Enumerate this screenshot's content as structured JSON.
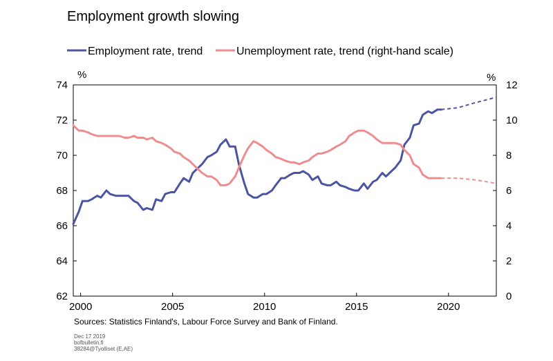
{
  "chart_data": {
    "type": "line",
    "title": "Employment growth slowing",
    "legend": {
      "placement": "top",
      "entries": [
        "Employment rate, trend",
        "Unemployment rate, trend (right-hand scale)"
      ]
    },
    "y_left": {
      "unit": "%",
      "range": [
        62,
        74
      ],
      "ticks": [
        "62",
        "64",
        "66",
        "68",
        "70",
        "72",
        "74"
      ]
    },
    "y_right": {
      "unit": "%",
      "range": [
        0,
        12
      ],
      "ticks": [
        "0",
        "2",
        "4",
        "6",
        "8",
        "10",
        "12"
      ]
    },
    "x_axis": {
      "range": [
        1999.6,
        2022.6
      ],
      "ticks": [
        "2000",
        "2005",
        "2010",
        "2015",
        "2020"
      ],
      "tick_values": [
        2000,
        2005,
        2010,
        2015,
        2020
      ]
    },
    "grid": false,
    "series": [
      {
        "name": "Employment rate, trend",
        "color": "#4a54a0",
        "axis": "left",
        "points": [
          [
            1999.6,
            66.1
          ],
          [
            1999.9,
            66.8
          ],
          [
            2000.1,
            67.4
          ],
          [
            2000.4,
            67.4
          ],
          [
            2000.6,
            67.5
          ],
          [
            2000.9,
            67.7
          ],
          [
            2001.1,
            67.6
          ],
          [
            2001.4,
            68.0
          ],
          [
            2001.6,
            67.8
          ],
          [
            2001.9,
            67.7
          ],
          [
            2002.1,
            67.7
          ],
          [
            2002.4,
            67.7
          ],
          [
            2002.6,
            67.7
          ],
          [
            2002.9,
            67.4
          ],
          [
            2003.1,
            67.3
          ],
          [
            2003.4,
            66.9
          ],
          [
            2003.6,
            67.0
          ],
          [
            2003.9,
            66.9
          ],
          [
            2004.1,
            67.5
          ],
          [
            2004.4,
            67.4
          ],
          [
            2004.6,
            67.8
          ],
          [
            2004.9,
            67.9
          ],
          [
            2005.1,
            67.9
          ],
          [
            2005.4,
            68.4
          ],
          [
            2005.6,
            68.7
          ],
          [
            2005.9,
            68.5
          ],
          [
            2006.1,
            69.0
          ],
          [
            2006.4,
            69.3
          ],
          [
            2006.6,
            69.5
          ],
          [
            2006.9,
            69.9
          ],
          [
            2007.1,
            70.0
          ],
          [
            2007.4,
            70.2
          ],
          [
            2007.6,
            70.6
          ],
          [
            2007.9,
            70.9
          ],
          [
            2008.1,
            70.5
          ],
          [
            2008.4,
            70.5
          ],
          [
            2008.6,
            69.5
          ],
          [
            2008.9,
            68.4
          ],
          [
            2009.1,
            67.8
          ],
          [
            2009.4,
            67.6
          ],
          [
            2009.6,
            67.6
          ],
          [
            2009.9,
            67.8
          ],
          [
            2010.1,
            67.8
          ],
          [
            2010.4,
            68.0
          ],
          [
            2010.6,
            68.3
          ],
          [
            2010.9,
            68.7
          ],
          [
            2011.1,
            68.7
          ],
          [
            2011.4,
            68.9
          ],
          [
            2011.6,
            69.0
          ],
          [
            2011.9,
            69.0
          ],
          [
            2012.1,
            69.1
          ],
          [
            2012.4,
            68.9
          ],
          [
            2012.6,
            68.6
          ],
          [
            2012.9,
            68.8
          ],
          [
            2013.1,
            68.4
          ],
          [
            2013.4,
            68.3
          ],
          [
            2013.6,
            68.3
          ],
          [
            2013.9,
            68.5
          ],
          [
            2014.1,
            68.3
          ],
          [
            2014.4,
            68.2
          ],
          [
            2014.6,
            68.1
          ],
          [
            2014.9,
            68.0
          ],
          [
            2015.1,
            68.0
          ],
          [
            2015.4,
            68.4
          ],
          [
            2015.6,
            68.1
          ],
          [
            2015.9,
            68.5
          ],
          [
            2016.1,
            68.6
          ],
          [
            2016.4,
            69.0
          ],
          [
            2016.6,
            68.8
          ],
          [
            2016.9,
            69.1
          ],
          [
            2017.1,
            69.3
          ],
          [
            2017.4,
            69.7
          ],
          [
            2017.6,
            70.6
          ],
          [
            2017.9,
            71.0
          ],
          [
            2018.1,
            71.7
          ],
          [
            2018.4,
            71.8
          ],
          [
            2018.6,
            72.3
          ],
          [
            2018.9,
            72.5
          ],
          [
            2019.1,
            72.4
          ],
          [
            2019.4,
            72.6
          ],
          [
            2019.6,
            72.6
          ]
        ],
        "forecast": [
          [
            2019.6,
            72.6
          ],
          [
            2020.5,
            72.7
          ],
          [
            2021.5,
            73.0
          ],
          [
            2022.6,
            73.3
          ]
        ]
      },
      {
        "name": "Unemployment rate, trend (right-hand scale)",
        "color": "#ee8d8f",
        "axis": "right",
        "points": [
          [
            1999.6,
            9.7
          ],
          [
            1999.9,
            9.4
          ],
          [
            2000.1,
            9.4
          ],
          [
            2000.4,
            9.3
          ],
          [
            2000.6,
            9.2
          ],
          [
            2000.9,
            9.1
          ],
          [
            2001.1,
            9.1
          ],
          [
            2001.4,
            9.1
          ],
          [
            2001.6,
            9.1
          ],
          [
            2001.9,
            9.1
          ],
          [
            2002.1,
            9.1
          ],
          [
            2002.4,
            9.0
          ],
          [
            2002.6,
            9.0
          ],
          [
            2002.9,
            9.1
          ],
          [
            2003.1,
            9.0
          ],
          [
            2003.4,
            9.0
          ],
          [
            2003.6,
            8.9
          ],
          [
            2003.9,
            9.0
          ],
          [
            2004.1,
            8.8
          ],
          [
            2004.4,
            8.7
          ],
          [
            2004.6,
            8.6
          ],
          [
            2004.9,
            8.4
          ],
          [
            2005.1,
            8.2
          ],
          [
            2005.4,
            8.1
          ],
          [
            2005.6,
            7.9
          ],
          [
            2005.9,
            7.7
          ],
          [
            2006.1,
            7.5
          ],
          [
            2006.4,
            7.2
          ],
          [
            2006.6,
            7.0
          ],
          [
            2006.9,
            6.8
          ],
          [
            2007.1,
            6.8
          ],
          [
            2007.4,
            6.6
          ],
          [
            2007.6,
            6.3
          ],
          [
            2007.9,
            6.3
          ],
          [
            2008.1,
            6.4
          ],
          [
            2008.4,
            6.8
          ],
          [
            2008.6,
            7.3
          ],
          [
            2008.9,
            8.0
          ],
          [
            2009.1,
            8.4
          ],
          [
            2009.4,
            8.8
          ],
          [
            2009.6,
            8.7
          ],
          [
            2009.9,
            8.5
          ],
          [
            2010.1,
            8.3
          ],
          [
            2010.4,
            8.1
          ],
          [
            2010.6,
            7.9
          ],
          [
            2010.9,
            7.8
          ],
          [
            2011.1,
            7.7
          ],
          [
            2011.4,
            7.6
          ],
          [
            2011.6,
            7.6
          ],
          [
            2011.9,
            7.5
          ],
          [
            2012.1,
            7.6
          ],
          [
            2012.4,
            7.7
          ],
          [
            2012.6,
            7.9
          ],
          [
            2012.9,
            8.1
          ],
          [
            2013.1,
            8.1
          ],
          [
            2013.4,
            8.2
          ],
          [
            2013.6,
            8.3
          ],
          [
            2013.9,
            8.5
          ],
          [
            2014.1,
            8.6
          ],
          [
            2014.4,
            8.8
          ],
          [
            2014.6,
            9.1
          ],
          [
            2014.9,
            9.3
          ],
          [
            2015.1,
            9.4
          ],
          [
            2015.4,
            9.4
          ],
          [
            2015.6,
            9.3
          ],
          [
            2015.9,
            9.1
          ],
          [
            2016.1,
            8.9
          ],
          [
            2016.4,
            8.7
          ],
          [
            2016.6,
            8.7
          ],
          [
            2016.9,
            8.7
          ],
          [
            2017.1,
            8.7
          ],
          [
            2017.4,
            8.6
          ],
          [
            2017.6,
            8.3
          ],
          [
            2017.9,
            8.0
          ],
          [
            2018.1,
            7.5
          ],
          [
            2018.4,
            7.3
          ],
          [
            2018.6,
            6.9
          ],
          [
            2018.9,
            6.7
          ],
          [
            2019.1,
            6.7
          ],
          [
            2019.4,
            6.7
          ],
          [
            2019.6,
            6.7
          ]
        ],
        "forecast": [
          [
            2019.6,
            6.7
          ],
          [
            2020.5,
            6.7
          ],
          [
            2021.5,
            6.6
          ],
          [
            2022.6,
            6.4
          ]
        ]
      }
    ],
    "footer": {
      "source": "Sources: Statistics Finland's, Labour Force Survey and Bank of Finland.",
      "meta": [
        "Dec 17 2019",
        "bofbulletin.fi",
        "38284@Tyolliset (E,AE)"
      ]
    }
  }
}
